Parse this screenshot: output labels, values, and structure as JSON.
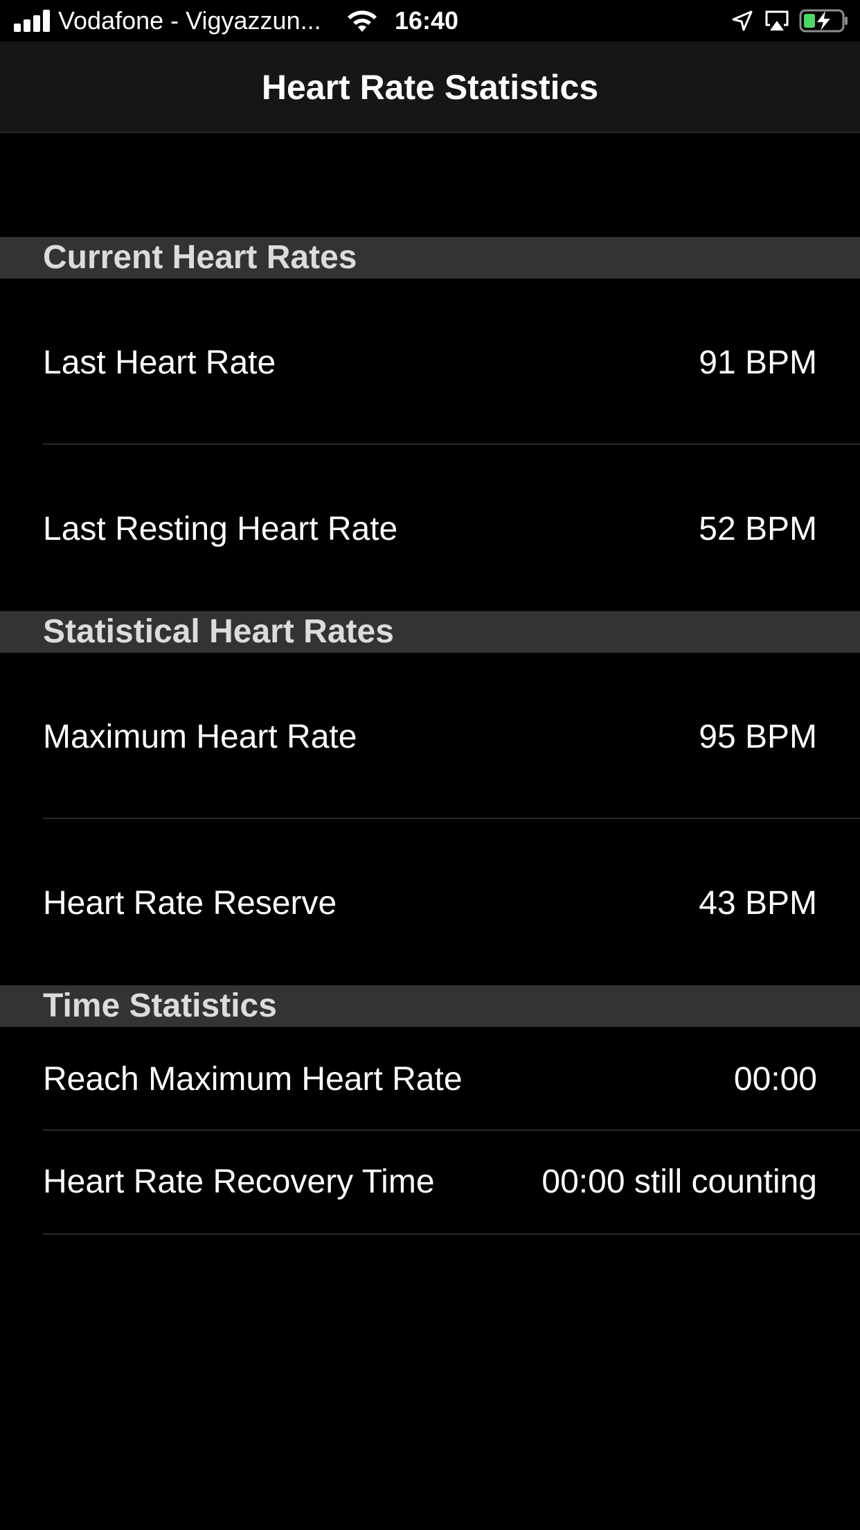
{
  "status_bar": {
    "carrier": "Vodafone - Vigyazzun...",
    "time": "16:40",
    "icons": [
      "signal-icon",
      "wifi-icon",
      "location-icon",
      "airplay-icon",
      "battery-charging-icon"
    ],
    "battery_color": "#4cd964"
  },
  "nav": {
    "title": "Heart Rate Statistics"
  },
  "sections": {
    "current": {
      "title": "Current Heart Rates",
      "rows": [
        {
          "label": "Last Heart Rate",
          "value": "91 BPM"
        },
        {
          "label": "Last Resting Heart Rate",
          "value": "52 BPM"
        }
      ]
    },
    "statistical": {
      "title": "Statistical Heart Rates",
      "rows": [
        {
          "label": "Maximum Heart Rate",
          "value": "95 BPM"
        },
        {
          "label": "Heart Rate Reserve",
          "value": "43 BPM"
        }
      ]
    },
    "time": {
      "title": "Time Statistics",
      "rows": [
        {
          "label": "Reach Maximum Heart Rate",
          "value": "00:00"
        },
        {
          "label": "Heart Rate Recovery Time",
          "value": "00:00 still counting"
        }
      ]
    }
  }
}
